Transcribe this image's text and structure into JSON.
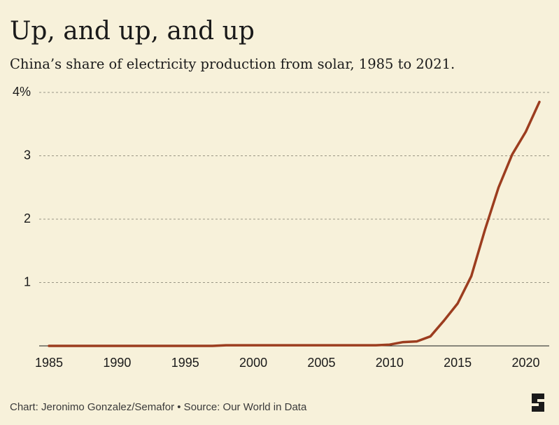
{
  "chart_data": {
    "type": "line",
    "title": "Up, and up, and up",
    "subtitle": "China’s share of electricity production from solar, 1985 to 2021.",
    "source": "Chart: Jeronimo Gonzalez/Semafor • Source: Our World in Data",
    "x": [
      1985,
      1986,
      1987,
      1988,
      1989,
      1990,
      1991,
      1992,
      1993,
      1994,
      1995,
      1996,
      1997,
      1998,
      1999,
      2000,
      2001,
      2002,
      2003,
      2004,
      2005,
      2006,
      2007,
      2008,
      2009,
      2010,
      2011,
      2012,
      2013,
      2014,
      2015,
      2016,
      2017,
      2018,
      2019,
      2020,
      2021
    ],
    "series": [
      {
        "name": "China",
        "color": "#9c3d1f",
        "values": [
          0,
          0,
          0,
          0,
          0,
          0,
          0,
          0,
          0,
          0,
          0,
          0,
          0,
          0.01,
          0.01,
          0.01,
          0.01,
          0.01,
          0.01,
          0.01,
          0.01,
          0.01,
          0.01,
          0.01,
          0.01,
          0.02,
          0.06,
          0.07,
          0.15,
          0.4,
          0.67,
          1.1,
          1.83,
          2.5,
          3.02,
          3.38,
          3.85
        ]
      }
    ],
    "xlim": [
      1985,
      2021
    ],
    "xticks": [
      1985,
      1990,
      1995,
      2000,
      2005,
      2010,
      2015,
      2020
    ],
    "ylim": [
      0,
      4
    ],
    "yticks": [
      {
        "value": 4,
        "label": "4%"
      },
      3,
      2,
      1
    ],
    "grid": true
  }
}
